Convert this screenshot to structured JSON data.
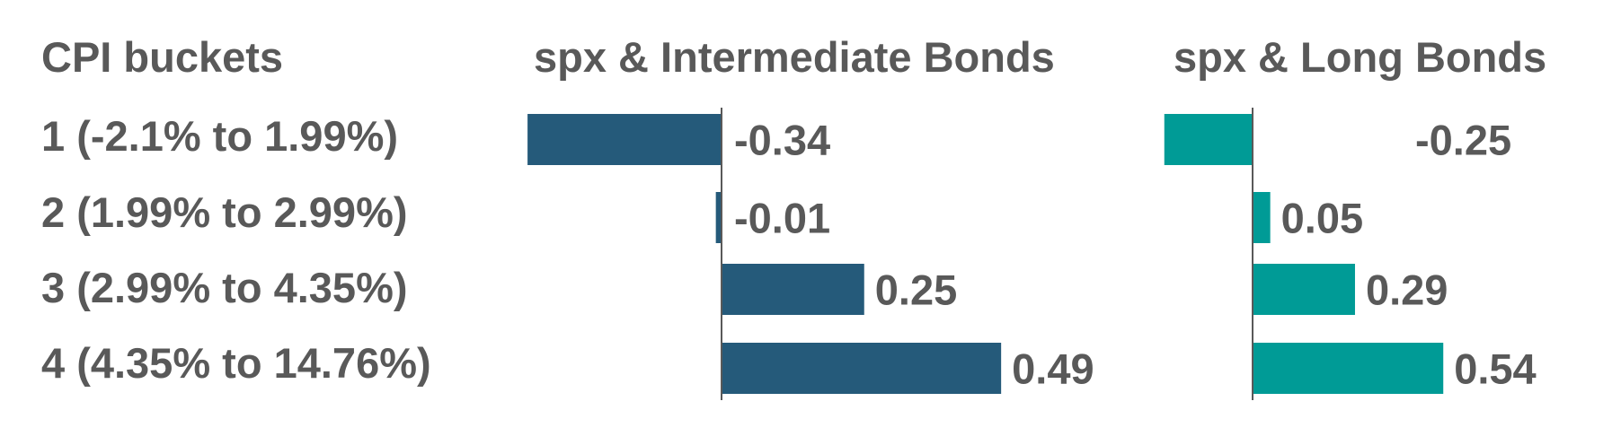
{
  "chart_data": {
    "type": "bar",
    "orientation": "horizontal",
    "category_header": "CPI buckets",
    "categories": [
      "1  (-2.1% to 1.99%)",
      "2  (1.99% to 2.99%)",
      "3  (2.99% to 4.35%)",
      "4  (4.35% to 14.76%)"
    ],
    "series": [
      {
        "name": "spx & Intermediate Bonds",
        "values": [
          -0.34,
          -0.01,
          0.25,
          0.49
        ],
        "value_labels": [
          "-0.34",
          "-0.01",
          "0.25",
          "0.49"
        ],
        "color": "#255A7A"
      },
      {
        "name": "spx & Long Bonds",
        "values": [
          -0.25,
          0.05,
          0.29,
          0.54
        ],
        "value_labels": [
          "-0.25",
          "0.05",
          "0.29",
          "0.54"
        ],
        "color": "#009B96"
      }
    ],
    "text_color": "#595959",
    "axis_color": "#595959",
    "grid": false,
    "legend": "none"
  }
}
